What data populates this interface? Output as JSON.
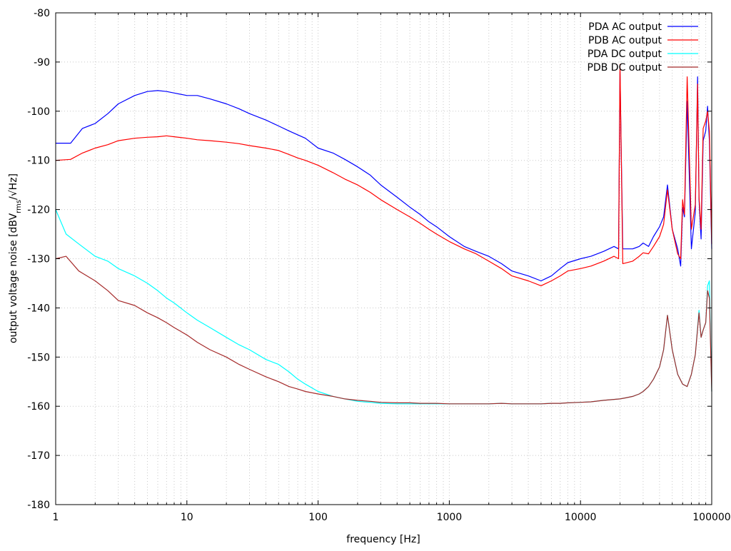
{
  "chart_data": {
    "type": "line",
    "title": "",
    "xlabel": "frequency [Hz]",
    "ylabel_parts": {
      "prefix": "output voltage noise [dBV",
      "subscript": "rms",
      "suffix": "/√Hz]"
    },
    "x_scale": "log",
    "xlim": [
      1,
      100000
    ],
    "ylim": [
      -180,
      -80
    ],
    "x_ticks": [
      1,
      10,
      100,
      1000,
      10000,
      100000
    ],
    "x_tick_labels": [
      "1",
      "10",
      "100",
      "1000",
      "10000",
      "100000"
    ],
    "y_ticks": [
      -180,
      -170,
      -160,
      -150,
      -140,
      -130,
      -120,
      -110,
      -100,
      -90,
      -80
    ],
    "y_tick_labels": [
      "-180",
      "-170",
      "-160",
      "-150",
      "-140",
      "-130",
      "-120",
      "-110",
      "-100",
      "-90",
      "-80"
    ],
    "grid": true,
    "legend_position": "top-right",
    "series": [
      {
        "name": "PDA AC output",
        "color": "#0000ff",
        "x": [
          1,
          1.3,
          1.6,
          2,
          2.5,
          3,
          4,
          5,
          6,
          7,
          8,
          10,
          12,
          15,
          20,
          25,
          30,
          40,
          50,
          60,
          70,
          80,
          100,
          130,
          160,
          200,
          250,
          300,
          400,
          500,
          600,
          700,
          800,
          1000,
          1300,
          1600,
          2000,
          2500,
          3000,
          4000,
          5000,
          6000,
          7000,
          8000,
          10000,
          12000,
          15000,
          18000,
          19500,
          20000,
          21000,
          25000,
          28000,
          30000,
          33000,
          36000,
          40000,
          43000,
          46000,
          50000,
          55000,
          58000,
          60000,
          62000,
          65000,
          70000,
          75000,
          78000,
          80000,
          83000,
          86000,
          90000,
          93000,
          96000,
          100000
        ],
        "y": [
          -106.5,
          -106.5,
          -103.5,
          -102.5,
          -100.5,
          -98.5,
          -96.8,
          -96,
          -95.8,
          -96,
          -96.3,
          -96.8,
          -96.8,
          -97.5,
          -98.5,
          -99.5,
          -100.5,
          -101.8,
          -103,
          -104,
          -104.8,
          -105.5,
          -107.5,
          -108.5,
          -109.8,
          -111.3,
          -113,
          -115,
          -117.5,
          -119.5,
          -121,
          -122.5,
          -123.5,
          -125.5,
          -127.5,
          -128.5,
          -129.5,
          -131,
          -132.5,
          -133.5,
          -134.5,
          -133.5,
          -132,
          -130.8,
          -130,
          -129.5,
          -128.5,
          -127.5,
          -128,
          -92,
          -128,
          -128,
          -127.5,
          -126.8,
          -127.5,
          -125.5,
          -123.5,
          -121.5,
          -115,
          -124,
          -128,
          -131.5,
          -119.5,
          -121.5,
          -98,
          -128,
          -120.5,
          -93,
          -118,
          -126,
          -106,
          -104,
          -99,
          -106,
          -128
        ]
      },
      {
        "name": "PDB AC output",
        "color": "#ff0000",
        "x": [
          1,
          1.3,
          1.6,
          2,
          2.5,
          3,
          4,
          5,
          6,
          7,
          8,
          10,
          12,
          15,
          20,
          25,
          30,
          40,
          50,
          60,
          70,
          80,
          100,
          130,
          160,
          200,
          250,
          300,
          400,
          500,
          600,
          700,
          800,
          1000,
          1300,
          1600,
          2000,
          2500,
          3000,
          4000,
          5000,
          6000,
          7000,
          8000,
          10000,
          12000,
          15000,
          18000,
          19500,
          20000,
          21000,
          25000,
          28000,
          30000,
          33000,
          36000,
          40000,
          43000,
          46000,
          50000,
          55000,
          58000,
          60000,
          62000,
          65000,
          70000,
          75000,
          78000,
          80000,
          83000,
          86000,
          90000,
          93000,
          96000,
          100000
        ],
        "y": [
          -110,
          -109.8,
          -108.5,
          -107.5,
          -106.8,
          -106,
          -105.5,
          -105.3,
          -105.2,
          -105,
          -105.2,
          -105.5,
          -105.8,
          -106,
          -106.3,
          -106.6,
          -107,
          -107.5,
          -108,
          -108.8,
          -109.5,
          -110,
          -111,
          -112.5,
          -113.8,
          -115,
          -116.5,
          -118,
          -120,
          -121.5,
          -122.8,
          -124,
          -125,
          -126.5,
          -128,
          -129,
          -130.5,
          -132,
          -133.5,
          -134.5,
          -135.5,
          -134.5,
          -133.5,
          -132.5,
          -132,
          -131.5,
          -130.5,
          -129.5,
          -130,
          -90.5,
          -131,
          -130.5,
          -129.5,
          -128.8,
          -129,
          -127.5,
          -125.5,
          -123,
          -116,
          -124,
          -129,
          -130,
          -118,
          -121,
          -93,
          -124,
          -119,
          -94.5,
          -117.5,
          -124,
          -103.5,
          -102,
          -100,
          -104,
          -127
        ]
      },
      {
        "name": "PDA DC output",
        "color": "#00ffff",
        "x": [
          1,
          1.2,
          1.5,
          2,
          2.5,
          3,
          4,
          5,
          6,
          7,
          8,
          10,
          12,
          15,
          20,
          25,
          30,
          40,
          50,
          60,
          70,
          80,
          100,
          130,
          160,
          200,
          250,
          300,
          400,
          500,
          600,
          700,
          800,
          1000,
          1300,
          1600,
          2000,
          2500,
          3000,
          4000,
          5000,
          6000,
          7000,
          8000,
          10000,
          12000,
          15000,
          18000,
          20000,
          22000,
          25000,
          28000,
          30000,
          33000,
          36000,
          40000,
          43000,
          46000,
          50000,
          55000,
          60000,
          65000,
          70000,
          75000,
          80000,
          83000,
          86000,
          90000,
          93000,
          96000,
          100000
        ],
        "y": [
          -120,
          -125,
          -127,
          -129.5,
          -130.5,
          -132,
          -133.5,
          -135,
          -136.5,
          -138,
          -139,
          -141,
          -142.5,
          -144,
          -146,
          -147.5,
          -148.5,
          -150.5,
          -151.5,
          -153,
          -154.5,
          -155.5,
          -157,
          -158,
          -158.5,
          -159,
          -159.2,
          -159.4,
          -159.5,
          -159.5,
          -159.5,
          -159.5,
          -159.5,
          -159.5,
          -159.5,
          -159.5,
          -159.5,
          -159.4,
          -159.5,
          -159.5,
          -159.5,
          -159.4,
          -159.4,
          -159.3,
          -159.2,
          -159.1,
          -158.8,
          -158.6,
          -158.5,
          -158.3,
          -158,
          -157.5,
          -157,
          -156,
          -154.5,
          -152,
          -148.5,
          -141.5,
          -148.5,
          -153.5,
          -155.5,
          -156,
          -153.5,
          -149.5,
          -140.5,
          -146,
          -144.5,
          -143,
          -135.5,
          -134.5,
          -157
        ]
      },
      {
        "name": "PDB DC output",
        "color": "#a52a2a",
        "x": [
          1,
          1.2,
          1.5,
          2,
          2.5,
          3,
          4,
          5,
          6,
          7,
          8,
          10,
          12,
          15,
          20,
          25,
          30,
          40,
          50,
          60,
          70,
          80,
          100,
          130,
          160,
          200,
          250,
          300,
          400,
          500,
          600,
          700,
          800,
          1000,
          1300,
          1600,
          2000,
          2500,
          3000,
          4000,
          5000,
          6000,
          7000,
          8000,
          10000,
          12000,
          15000,
          18000,
          20000,
          22000,
          25000,
          28000,
          30000,
          33000,
          36000,
          40000,
          43000,
          46000,
          50000,
          55000,
          60000,
          65000,
          70000,
          75000,
          80000,
          83000,
          86000,
          90000,
          93000,
          96000,
          100000
        ],
        "y": [
          -130,
          -129.5,
          -132.5,
          -134.5,
          -136.5,
          -138.5,
          -139.5,
          -141,
          -142,
          -143,
          -144,
          -145.5,
          -147,
          -148.5,
          -150,
          -151.5,
          -152.5,
          -154,
          -155,
          -156,
          -156.5,
          -157,
          -157.5,
          -158,
          -158.5,
          -158.8,
          -159,
          -159.2,
          -159.3,
          -159.3,
          -159.4,
          -159.4,
          -159.4,
          -159.5,
          -159.5,
          -159.5,
          -159.5,
          -159.4,
          -159.5,
          -159.5,
          -159.5,
          -159.4,
          -159.4,
          -159.3,
          -159.2,
          -159.1,
          -158.8,
          -158.6,
          -158.5,
          -158.3,
          -158,
          -157.5,
          -157,
          -156,
          -154.5,
          -152,
          -148.5,
          -141.5,
          -148.5,
          -153.5,
          -155.5,
          -156,
          -153.5,
          -149.5,
          -141,
          -146,
          -144.5,
          -143,
          -136.5,
          -138,
          -157
        ]
      }
    ]
  }
}
